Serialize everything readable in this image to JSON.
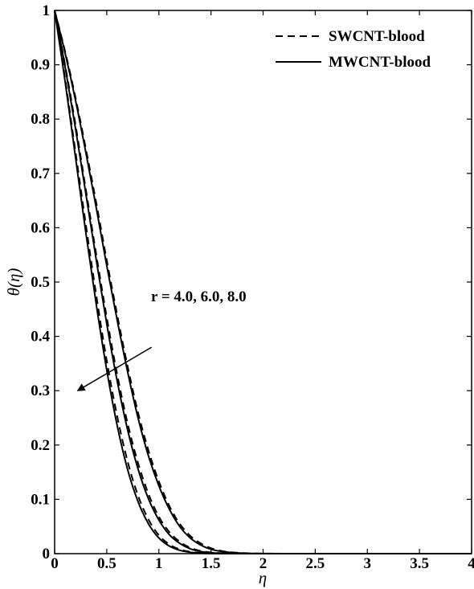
{
  "chart_data": {
    "type": "line",
    "title": "",
    "xlabel": "η",
    "ylabel": "θ(η)",
    "xlim": [
      0,
      4
    ],
    "ylim": [
      0,
      1
    ],
    "x_ticks": [
      "0",
      "0.5",
      "1",
      "1.5",
      "2",
      "2.5",
      "3",
      "3.5",
      "4"
    ],
    "y_ticks": [
      "0",
      "0.1",
      "0.2",
      "0.3",
      "0.4",
      "0.5",
      "0.6",
      "0.7",
      "0.8",
      "0.9",
      "1"
    ],
    "grid": false,
    "legend": {
      "placement": "top-right",
      "entries": [
        {
          "label": "SWCNT-blood",
          "style": "dashed"
        },
        {
          "label": "MWCNT-blood",
          "style": "solid"
        }
      ]
    },
    "annotation": {
      "text": "r = 4.0, 6.0, 8.0",
      "arrow_from": [
        0.93,
        0.38
      ],
      "arrow_to": [
        0.22,
        0.3
      ]
    },
    "x": [
      0,
      0.1,
      0.2,
      0.3,
      0.4,
      0.5,
      0.6,
      0.7,
      0.8,
      0.9,
      1.0,
      1.1,
      1.2,
      1.3,
      1.4,
      1.5,
      1.6,
      1.7,
      1.8,
      1.9,
      2.0,
      2.2,
      2.5,
      3.0,
      3.5,
      4.0
    ],
    "series": [
      {
        "name": "SWCNT-blood",
        "r": "4.0",
        "style": "dashed",
        "values": [
          1.0,
          0.925,
          0.84,
          0.745,
          0.645,
          0.54,
          0.44,
          0.345,
          0.26,
          0.19,
          0.133,
          0.088,
          0.055,
          0.033,
          0.019,
          0.01,
          0.005,
          0.0025,
          0.0012,
          0.0005,
          0.0002,
          0.0,
          0.0,
          0.0,
          0.0,
          0.0
        ]
      },
      {
        "name": "MWCNT-blood",
        "r": "4.0",
        "style": "solid",
        "values": [
          1.0,
          0.922,
          0.835,
          0.738,
          0.636,
          0.53,
          0.43,
          0.335,
          0.25,
          0.18,
          0.125,
          0.082,
          0.05,
          0.029,
          0.016,
          0.008,
          0.004,
          0.002,
          0.0009,
          0.0004,
          0.0001,
          0.0,
          0.0,
          0.0,
          0.0,
          0.0
        ]
      },
      {
        "name": "SWCNT-blood",
        "r": "6.0",
        "style": "dashed",
        "values": [
          1.0,
          0.9,
          0.79,
          0.67,
          0.55,
          0.435,
          0.33,
          0.24,
          0.167,
          0.11,
          0.068,
          0.04,
          0.022,
          0.011,
          0.005,
          0.0022,
          0.0009,
          0.0003,
          0.0001,
          0.0,
          0.0,
          0.0,
          0.0,
          0.0,
          0.0,
          0.0
        ]
      },
      {
        "name": "MWCNT-blood",
        "r": "6.0",
        "style": "solid",
        "values": [
          1.0,
          0.897,
          0.783,
          0.662,
          0.54,
          0.423,
          0.318,
          0.228,
          0.156,
          0.101,
          0.062,
          0.035,
          0.019,
          0.009,
          0.004,
          0.0017,
          0.0007,
          0.0002,
          0.0001,
          0.0,
          0.0,
          0.0,
          0.0,
          0.0,
          0.0,
          0.0
        ]
      },
      {
        "name": "SWCNT-blood",
        "r": "8.0",
        "style": "dashed",
        "values": [
          1.0,
          0.875,
          0.74,
          0.605,
          0.475,
          0.355,
          0.253,
          0.17,
          0.107,
          0.063,
          0.034,
          0.017,
          0.008,
          0.0034,
          0.0013,
          0.0005,
          0.0002,
          0.0,
          0.0,
          0.0,
          0.0,
          0.0,
          0.0,
          0.0,
          0.0,
          0.0
        ]
      },
      {
        "name": "MWCNT-blood",
        "r": "8.0",
        "style": "solid",
        "values": [
          1.0,
          0.87,
          0.73,
          0.59,
          0.458,
          0.338,
          0.236,
          0.155,
          0.096,
          0.055,
          0.029,
          0.014,
          0.0062,
          0.0025,
          0.0009,
          0.0003,
          0.0001,
          0.0,
          0.0,
          0.0,
          0.0,
          0.0,
          0.0,
          0.0,
          0.0,
          0.0
        ]
      }
    ]
  }
}
